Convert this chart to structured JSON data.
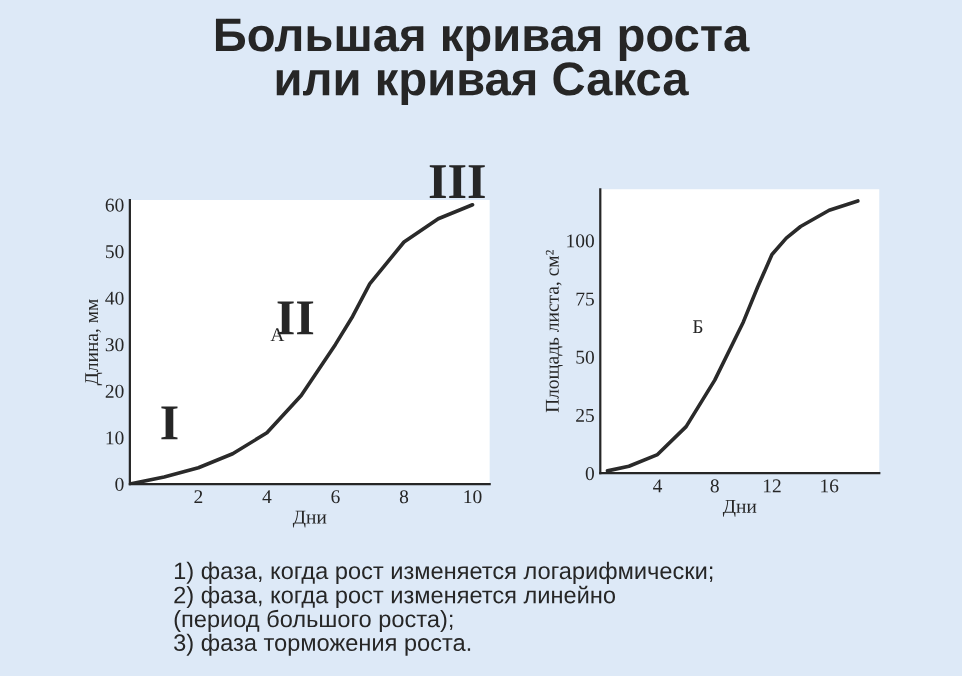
{
  "chart_data": [
    {
      "type": "line",
      "title": "Большая кривая роста\nили кривая Сакса",
      "xlabel": "Дни",
      "ylabel": "Длина, мм",
      "x": [
        0,
        1,
        2,
        3,
        4,
        5,
        6,
        6.5,
        7,
        8,
        9,
        10
      ],
      "series": [
        {
          "color": "#2a2a2a",
          "values": [
            0,
            1.5,
            3.5,
            6.5,
            11,
            19,
            30,
            36,
            43,
            52,
            57,
            60
          ]
        }
      ],
      "xlim": [
        0,
        10.5
      ],
      "xticks": [
        2,
        4,
        6,
        8,
        10
      ],
      "ylim": [
        0,
        61
      ],
      "yticks": [
        0,
        10,
        20,
        30,
        40,
        50,
        60
      ],
      "grid": false,
      "legend": false,
      "marker": "none",
      "line_style": "solid",
      "annotations": [
        "I",
        "II",
        "III",
        "А",
        "1) фаза, когда рост изменяется логарифмически;\n2) фаза, когда рост изменяется линейно\n(период большого роста);\n3) фаза торможения роста."
      ]
    },
    {
      "type": "line",
      "xlabel": "Дни",
      "ylabel": "Площадь листа, см²",
      "x": [
        0.5,
        2,
        4,
        6,
        8,
        10,
        11,
        12,
        13,
        14,
        16,
        18
      ],
      "series": [
        {
          "color": "#2a2a2a",
          "values": [
            1,
            3,
            8,
            20,
            40,
            65,
            80,
            94,
            101,
            106,
            113,
            117
          ]
        }
      ],
      "xlim": [
        0,
        19.5
      ],
      "xticks": [
        4,
        8,
        12,
        16
      ],
      "ylim": [
        0,
        122
      ],
      "yticks": [
        0,
        25,
        50,
        75,
        100
      ],
      "grid": false,
      "legend": false,
      "marker": "none",
      "line_style": "solid",
      "annotations": [
        "Б"
      ]
    }
  ]
}
